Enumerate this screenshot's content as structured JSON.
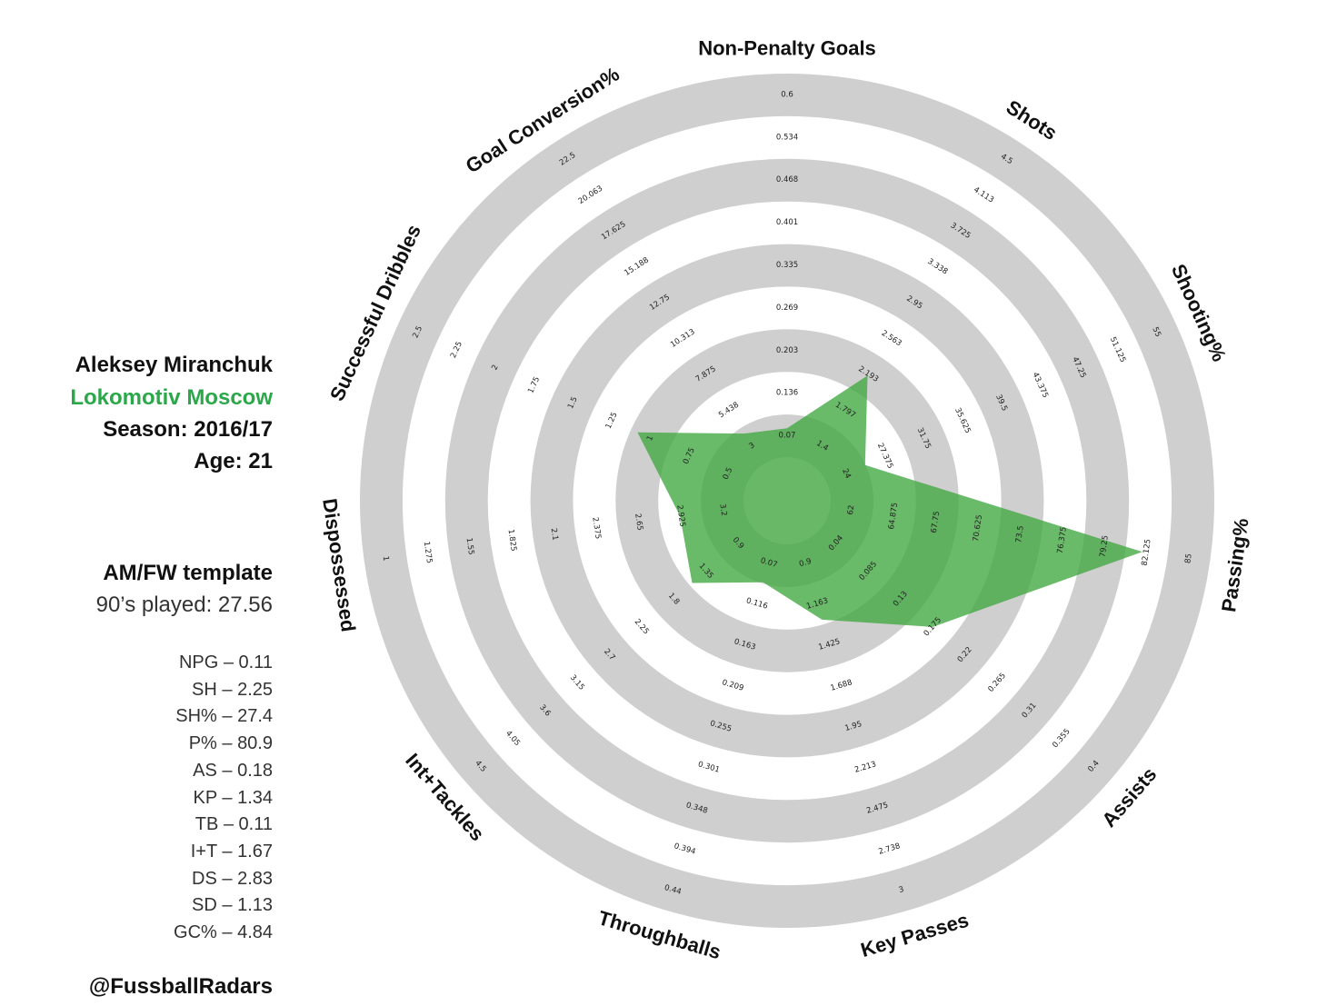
{
  "info": {
    "player": "Aleksey Miranchuk",
    "team": "Lokomotiv Moscow",
    "season": "Season: 2016/17",
    "age": "Age: 21",
    "template": "AM/FW template",
    "played": "90’s played: 27.56",
    "stats": [
      "NPG – 0.11",
      "SH – 2.25",
      "SH% – 27.4",
      "P% – 80.9",
      "AS – 0.18",
      "KP – 1.34",
      "TB – 0.11",
      "I+T – 1.67",
      "DS – 2.83",
      "SD – 1.13",
      "GC% – 4.84"
    ],
    "handle": "@FussballRadars"
  },
  "colors": {
    "ring": "#cfcfcf",
    "fill": "#3fa63f",
    "team": "#2aa84a"
  },
  "chart_data": {
    "type": "radar",
    "axes": [
      {
        "label": "Non-Penalty Goals",
        "ticks": [
          "0.07",
          "0.136",
          "0.203",
          "0.269",
          "0.335",
          "0.401",
          "0.468",
          "0.534",
          "0.6"
        ],
        "value": 0.11
      },
      {
        "label": "Shots",
        "ticks": [
          "1.4",
          "1.797",
          "2.193",
          "2.563",
          "2.95",
          "3.338",
          "3.725",
          "4.113",
          "4.5"
        ],
        "value": 2.25
      },
      {
        "label": "Shooting%",
        "ticks": [
          "24",
          "27.375",
          "31.75",
          "35.625",
          "39.5",
          "43.375",
          "47.25",
          "51.125",
          "55"
        ],
        "value": 27.4
      },
      {
        "label": "Passing%",
        "ticks": [
          "62",
          "64.875",
          "67.75",
          "70.625",
          "73.5",
          "76.375",
          "79.25",
          "82.125",
          "85"
        ],
        "value": 80.9
      },
      {
        "label": "Assists",
        "ticks": [
          "0.04",
          "0.085",
          "0.13",
          "0.175",
          "0.22",
          "0.265",
          "0.31",
          "0.355",
          "0.4"
        ],
        "value": 0.18
      },
      {
        "label": "Key Passes",
        "ticks": [
          "0.9",
          "1.163",
          "1.425",
          "1.688",
          "1.95",
          "2.213",
          "2.475",
          "2.738",
          "3"
        ],
        "value": 1.34
      },
      {
        "label": "Throughballs",
        "ticks": [
          "0.07",
          "0.116",
          "0.163",
          "0.209",
          "0.255",
          "0.301",
          "0.348",
          "0.394",
          "0.44"
        ],
        "value": 0.11
      },
      {
        "label": "Int+Tackles",
        "ticks": [
          "0.9",
          "1.35",
          "1.8",
          "2.25",
          "2.7",
          "3.15",
          "3.6",
          "4.05",
          "4.5"
        ],
        "value": 1.67
      },
      {
        "label": "Dispossessed",
        "ticks": [
          "3.2",
          "2.925",
          "2.65",
          "2.375",
          "2.1",
          "1.825",
          "1.55",
          "1.275",
          "1"
        ],
        "value": 2.83
      },
      {
        "label": "Successful Dribbles",
        "ticks": [
          "0.5",
          "0.75",
          "1",
          "1.25",
          "1.5",
          "1.75",
          "2",
          "2.25",
          "2.5"
        ],
        "value": 1.13
      },
      {
        "label": "Goal Conversion%",
        "ticks": [
          "3",
          "5.438",
          "7.875",
          "10.313",
          "12.75",
          "15.188",
          "17.625",
          "20.063",
          "22.5"
        ],
        "value": 4.84
      }
    ]
  }
}
